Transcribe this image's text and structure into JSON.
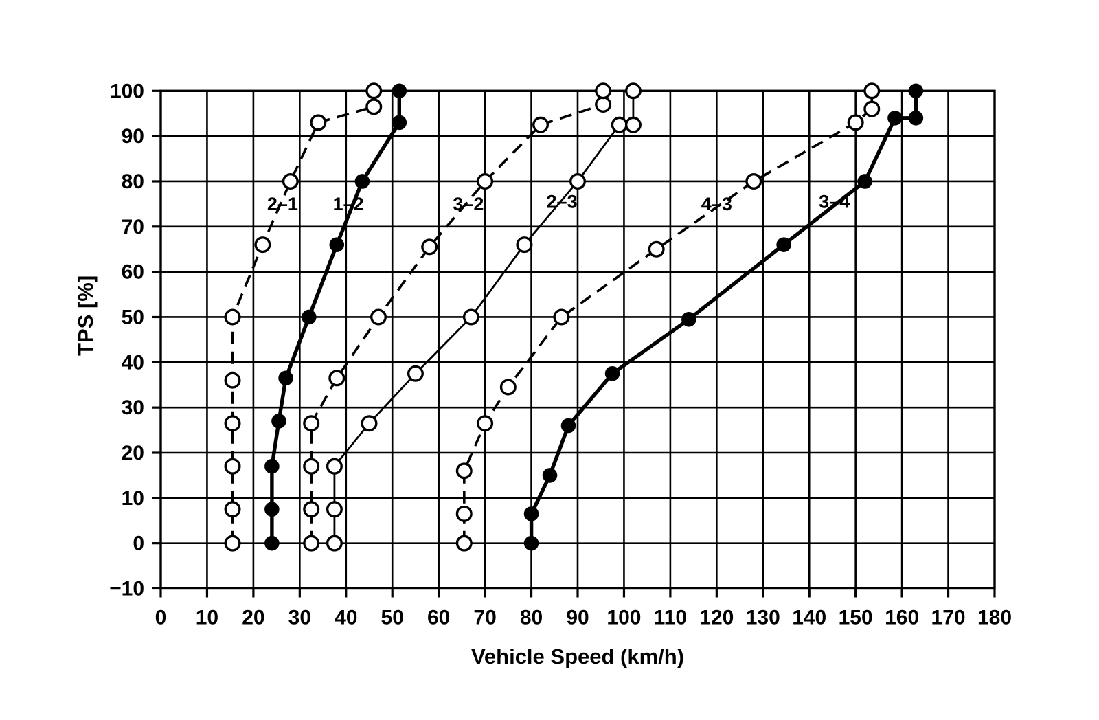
{
  "figure": {
    "background": "#ffffff",
    "ink": "#000000"
  },
  "chart_data": {
    "type": "line",
    "title": "",
    "xlabel": "Vehicle Speed (km/h)",
    "ylabel": "TPS [%]",
    "xlim": [
      0,
      180
    ],
    "ylim": [
      -10,
      100
    ],
    "x_ticks": [
      0,
      10,
      20,
      30,
      40,
      50,
      60,
      70,
      80,
      90,
      100,
      110,
      120,
      130,
      140,
      150,
      160,
      170,
      180
    ],
    "y_ticks": [
      -10,
      0,
      10,
      20,
      30,
      40,
      50,
      60,
      70,
      80,
      90,
      100
    ],
    "grid": true,
    "legend_position": "inline-curve-labels",
    "series": [
      {
        "name": "2-1",
        "label": "2–1",
        "shift_type": "downshift",
        "line": "dashed",
        "width": "medium",
        "marker": "open-circle",
        "label_at": {
          "x": 26.3,
          "y": 75
        },
        "points": [
          [
            15.5,
            0
          ],
          [
            15.5,
            7.5
          ],
          [
            15.5,
            17
          ],
          [
            15.5,
            26.5
          ],
          [
            15.5,
            36
          ],
          [
            15.5,
            50
          ],
          [
            22,
            66
          ],
          [
            28,
            80
          ],
          [
            34,
            93
          ],
          [
            46,
            96.5
          ],
          [
            46,
            100
          ]
        ]
      },
      {
        "name": "1-2",
        "label": "1–2",
        "shift_type": "upshift",
        "line": "solid",
        "width": "thick",
        "marker": "filled-circle",
        "label_at": {
          "x": 40.5,
          "y": 75
        },
        "points": [
          [
            24,
            0
          ],
          [
            24,
            7.5
          ],
          [
            24,
            17
          ],
          [
            25.5,
            27
          ],
          [
            27,
            36.5
          ],
          [
            32,
            50
          ],
          [
            38,
            66
          ],
          [
            43.5,
            80
          ],
          [
            51.5,
            93
          ],
          [
            51.5,
            100
          ]
        ]
      },
      {
        "name": "3-2",
        "label": "3–2",
        "shift_type": "downshift",
        "line": "dashed",
        "width": "medium",
        "marker": "open-circle",
        "label_at": {
          "x": 66.4,
          "y": 75
        },
        "points": [
          [
            32.5,
            0
          ],
          [
            32.5,
            7.5
          ],
          [
            32.5,
            17
          ],
          [
            32.5,
            26.5
          ],
          [
            38,
            36.5
          ],
          [
            47,
            50
          ],
          [
            58,
            65.5
          ],
          [
            70,
            80
          ],
          [
            82,
            92.5
          ],
          [
            95.5,
            97
          ],
          [
            95.5,
            100
          ]
        ]
      },
      {
        "name": "2-3",
        "label": "2–3",
        "shift_type": "upshift",
        "line": "solid",
        "width": "thin",
        "marker": "open-circle",
        "label_at": {
          "x": 86.6,
          "y": 75.5
        },
        "points": [
          [
            37.5,
            0
          ],
          [
            37.5,
            7.5
          ],
          [
            37.5,
            17
          ],
          [
            45,
            26.5
          ],
          [
            55,
            37.5
          ],
          [
            67,
            50
          ],
          [
            78.5,
            66
          ],
          [
            90,
            80
          ],
          [
            99,
            92.5
          ],
          [
            102,
            92.5
          ],
          [
            102,
            100
          ]
        ]
      },
      {
        "name": "4-3",
        "label": "4–3",
        "shift_type": "downshift",
        "line": "dashed",
        "width": "medium",
        "marker": "open-circle",
        "label_at": {
          "x": 120,
          "y": 75
        },
        "points": [
          [
            65.5,
            0
          ],
          [
            65.5,
            6.5
          ],
          [
            65.5,
            16
          ],
          [
            70,
            26.5
          ],
          [
            75,
            34.5
          ],
          [
            86.5,
            50
          ],
          [
            107,
            65
          ],
          [
            128,
            80
          ],
          [
            150,
            93
          ],
          [
            153.5,
            96
          ],
          [
            153.5,
            100
          ]
        ]
      },
      {
        "name": "3-4",
        "label": "3–4",
        "shift_type": "upshift",
        "line": "solid",
        "width": "thick",
        "marker": "filled-circle",
        "label_at": {
          "x": 145.4,
          "y": 75.5
        },
        "points": [
          [
            80,
            0
          ],
          [
            80,
            6.5
          ],
          [
            84,
            15
          ],
          [
            88,
            26
          ],
          [
            97.5,
            37.5
          ],
          [
            114,
            49.5
          ],
          [
            134.5,
            66
          ],
          [
            152,
            80
          ],
          [
            158.5,
            94
          ],
          [
            163,
            94
          ],
          [
            163,
            100
          ]
        ]
      }
    ]
  }
}
